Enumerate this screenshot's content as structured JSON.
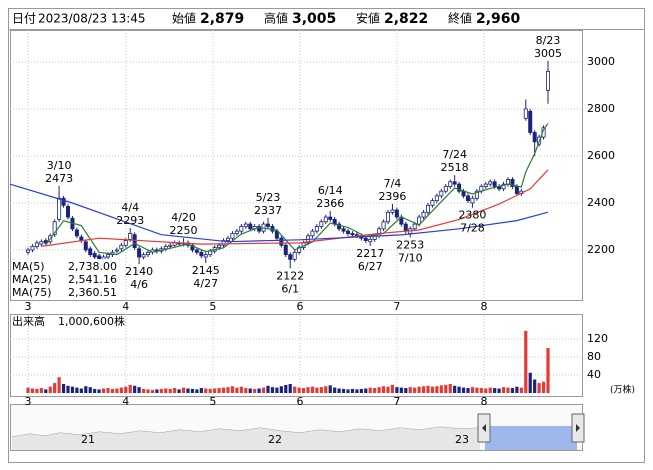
{
  "header": {
    "items": [
      {
        "label": "日付",
        "value": "2023/08/23 13:45"
      },
      {
        "label": "始値",
        "value": "2,879"
      },
      {
        "label": "高値",
        "value": "3,005",
        "color": "#e60000"
      },
      {
        "label": "安値",
        "value": "2,822",
        "color": "#008000"
      },
      {
        "label": "終値",
        "value": "2,960"
      }
    ]
  },
  "chart_data": [
    {
      "type": "candlestick",
      "x": [
        0,
        1,
        2,
        3,
        4,
        5,
        6,
        7,
        8,
        9,
        10,
        11,
        12,
        13,
        14,
        15,
        16,
        17,
        18,
        19,
        20,
        21,
        22,
        23,
        24,
        25,
        26,
        27,
        28,
        29,
        30,
        31,
        32,
        33,
        34,
        35,
        36,
        37,
        38,
        39,
        40,
        41,
        42,
        43,
        44,
        45,
        46,
        47,
        48,
        49,
        50,
        51,
        52,
        53,
        54,
        55,
        56,
        57,
        58,
        59,
        60,
        61,
        62,
        63,
        64,
        65,
        66,
        67,
        68,
        69,
        70,
        71,
        72,
        73,
        74,
        75,
        76,
        77,
        78,
        79,
        80,
        81,
        82,
        83,
        84,
        85,
        86,
        87,
        88,
        89,
        90,
        91,
        92,
        93,
        94,
        95,
        96,
        97,
        98,
        99,
        100,
        101,
        102,
        103,
        104,
        105,
        106,
        107,
        108,
        109,
        110,
        111,
        112,
        113,
        114,
        115,
        116,
        117
      ],
      "open": [
        2190,
        2200,
        2215,
        2225,
        2240,
        2235,
        2265,
        2330,
        2420,
        2385,
        2335,
        2285,
        2255,
        2235,
        2205,
        2185,
        2175,
        2160,
        2170,
        2180,
        2195,
        2205,
        2220,
        2245,
        2265,
        2205,
        2170,
        2180,
        2190,
        2200,
        2195,
        2205,
        2215,
        2220,
        2230,
        2225,
        2230,
        2220,
        2200,
        2190,
        2170,
        2180,
        2195,
        2210,
        2220,
        2240,
        2250,
        2270,
        2280,
        2300,
        2310,
        2290,
        2300,
        2280,
        2310,
        2300,
        2280,
        2250,
        2220,
        2180,
        2160,
        2190,
        2210,
        2230,
        2260,
        2280,
        2300,
        2320,
        2340,
        2330,
        2310,
        2290,
        2280,
        2270,
        2265,
        2260,
        2250,
        2235,
        2245,
        2260,
        2290,
        2320,
        2360,
        2370,
        2340,
        2310,
        2270,
        2290,
        2310,
        2340,
        2360,
        2390,
        2410,
        2430,
        2450,
        2470,
        2490,
        2480,
        2450,
        2430,
        2400,
        2420,
        2450,
        2470,
        2480,
        2490,
        2470,
        2460,
        2480,
        2500,
        2470,
        2440,
        2760,
        2790,
        2700,
        2650,
        2680,
        2879
      ],
      "high": [
        2210,
        2225,
        2240,
        2245,
        2250,
        2270,
        2330,
        2473,
        2430,
        2395,
        2345,
        2295,
        2265,
        2245,
        2215,
        2195,
        2185,
        2180,
        2190,
        2200,
        2210,
        2230,
        2250,
        2293,
        2275,
        2215,
        2190,
        2200,
        2210,
        2210,
        2215,
        2225,
        2230,
        2240,
        2240,
        2250,
        2240,
        2230,
        2210,
        2200,
        2190,
        2205,
        2220,
        2230,
        2250,
        2260,
        2280,
        2290,
        2310,
        2320,
        2320,
        2310,
        2310,
        2320,
        2337,
        2310,
        2290,
        2260,
        2230,
        2190,
        2200,
        2220,
        2240,
        2270,
        2290,
        2310,
        2330,
        2350,
        2366,
        2340,
        2320,
        2300,
        2290,
        2280,
        2275,
        2270,
        2260,
        2255,
        2270,
        2300,
        2330,
        2370,
        2396,
        2380,
        2350,
        2320,
        2300,
        2320,
        2350,
        2370,
        2400,
        2420,
        2440,
        2460,
        2480,
        2500,
        2518,
        2490,
        2460,
        2440,
        2430,
        2460,
        2480,
        2490,
        2500,
        2500,
        2480,
        2490,
        2510,
        2510,
        2480,
        2460,
        2840,
        2800,
        2710,
        2690,
        2730,
        3005
      ],
      "low": [
        2180,
        2190,
        2205,
        2215,
        2220,
        2225,
        2255,
        2320,
        2380,
        2330,
        2280,
        2250,
        2230,
        2190,
        2170,
        2160,
        2150,
        2150,
        2160,
        2170,
        2185,
        2195,
        2210,
        2235,
        2200,
        2140,
        2160,
        2170,
        2180,
        2185,
        2185,
        2195,
        2205,
        2210,
        2215,
        2215,
        2210,
        2190,
        2180,
        2165,
        2145,
        2170,
        2185,
        2200,
        2210,
        2230,
        2240,
        2260,
        2270,
        2290,
        2280,
        2280,
        2270,
        2270,
        2290,
        2270,
        2240,
        2210,
        2170,
        2122,
        2150,
        2180,
        2200,
        2220,
        2250,
        2270,
        2290,
        2310,
        2320,
        2300,
        2280,
        2270,
        2260,
        2255,
        2250,
        2240,
        2230,
        2217,
        2235,
        2250,
        2280,
        2310,
        2350,
        2330,
        2300,
        2270,
        2253,
        2280,
        2300,
        2330,
        2350,
        2380,
        2400,
        2420,
        2440,
        2460,
        2470,
        2440,
        2420,
        2400,
        2380,
        2410,
        2440,
        2460,
        2470,
        2460,
        2450,
        2450,
        2470,
        2460,
        2430,
        2430,
        2750,
        2690,
        2600,
        2640,
        2670,
        2822
      ],
      "close": [
        2200,
        2215,
        2230,
        2235,
        2230,
        2260,
        2320,
        2420,
        2390,
        2340,
        2290,
        2260,
        2240,
        2200,
        2180,
        2170,
        2160,
        2170,
        2180,
        2190,
        2200,
        2220,
        2240,
        2270,
        2210,
        2170,
        2180,
        2190,
        2200,
        2195,
        2205,
        2215,
        2220,
        2230,
        2225,
        2230,
        2220,
        2200,
        2190,
        2175,
        2180,
        2195,
        2210,
        2220,
        2240,
        2250,
        2270,
        2280,
        2300,
        2310,
        2290,
        2300,
        2280,
        2310,
        2300,
        2280,
        2250,
        2220,
        2180,
        2160,
        2190,
        2210,
        2230,
        2260,
        2280,
        2300,
        2320,
        2340,
        2330,
        2310,
        2290,
        2280,
        2270,
        2265,
        2260,
        2250,
        2240,
        2245,
        2260,
        2290,
        2320,
        2360,
        2370,
        2340,
        2310,
        2280,
        2290,
        2310,
        2340,
        2360,
        2390,
        2410,
        2430,
        2450,
        2470,
        2490,
        2480,
        2450,
        2430,
        2410,
        2420,
        2450,
        2470,
        2480,
        2490,
        2470,
        2460,
        2480,
        2500,
        2470,
        2440,
        2450,
        2800,
        2700,
        2660,
        2680,
        2720,
        2960
      ],
      "up_color": "#ffffff",
      "down_color": "#1a237e",
      "edge_color": "#1a237e",
      "xlim": [
        -4.05,
        124.65
      ],
      "xticks": [
        {
          "value": 0,
          "label": "3"
        },
        {
          "value": 22,
          "label": "4"
        },
        {
          "value": 41.6,
          "label": "5"
        },
        {
          "value": 61.2,
          "label": "6"
        },
        {
          "value": 83,
          "label": "7"
        },
        {
          "value": 102.6,
          "label": "8"
        }
      ],
      "ylim": [
        1987,
        3136
      ],
      "yticks": [
        2200,
        2400,
        2600,
        2800,
        3000
      ],
      "grid": true,
      "lines": [
        {
          "name": "MA(5)",
          "color": "#2e7d32",
          "last_label": "2,738.00",
          "x": [
            4,
            8,
            12,
            16,
            20,
            24,
            28,
            32,
            36,
            40,
            44,
            48,
            52,
            56,
            60,
            64,
            68,
            72,
            76,
            80,
            84,
            88,
            92,
            96,
            100,
            104,
            108,
            111,
            112,
            114,
            116,
            117
          ],
          "values": [
            2222,
            2324,
            2304,
            2190,
            2180,
            2228,
            2190,
            2207,
            2225,
            2193,
            2209,
            2268,
            2296,
            2284,
            2200,
            2234,
            2314,
            2296,
            2257,
            2271,
            2340,
            2306,
            2386,
            2464,
            2438,
            2462,
            2480,
            2468,
            2532,
            2610,
            2712,
            2738.0
          ]
        },
        {
          "name": "MA(25)",
          "color": "#e53935",
          "last_label": "2,541.16",
          "x": [
            3,
            16,
            39,
            61,
            79,
            88,
            97,
            106,
            113,
            117
          ],
          "values": [
            2215,
            2250,
            2225,
            2230,
            2270,
            2285,
            2330,
            2395,
            2460,
            2541.16
          ]
        },
        {
          "name": "MA(75)",
          "color": "#2a3fd6",
          "last_label": "2,360.51",
          "x": [
            -4,
            10,
            30,
            45,
            61,
            84,
            97,
            110,
            117
          ],
          "values": [
            2480,
            2400,
            2265,
            2235,
            2243,
            2264,
            2290,
            2325,
            2360.51
          ]
        }
      ],
      "annotations": [
        {
          "x": 7,
          "date": "3/10",
          "value": 2473,
          "position": "above"
        },
        {
          "x": 23,
          "date": "4/4",
          "value": 2293,
          "position": "above"
        },
        {
          "x": 25,
          "date": "4/6",
          "value": 2140,
          "position": "below"
        },
        {
          "x": 35,
          "date": "4/20",
          "value": 2250,
          "position": "above"
        },
        {
          "x": 40,
          "date": "4/27",
          "value": 2145,
          "position": "below"
        },
        {
          "x": 54,
          "date": "5/23",
          "value": 2337,
          "position": "above"
        },
        {
          "x": 59,
          "date": "6/1",
          "value": 2122,
          "position": "below"
        },
        {
          "x": 68,
          "date": "6/14",
          "value": 2366,
          "position": "above"
        },
        {
          "x": 77,
          "date": "6/27",
          "value": 2217,
          "position": "below"
        },
        {
          "x": 82,
          "date": "7/4",
          "value": 2396,
          "position": "above"
        },
        {
          "x": 86,
          "date": "7/10",
          "value": 2253,
          "position": "below"
        },
        {
          "x": 96,
          "date": "7/24",
          "value": 2518,
          "position": "above"
        },
        {
          "x": 100,
          "date": "7/28",
          "value": 2380,
          "position": "below"
        },
        {
          "x": 117,
          "date": "8/23",
          "value": 3005,
          "position": "above"
        }
      ]
    },
    {
      "type": "bar",
      "title": "出来高",
      "subtitle": "1,000,600株",
      "unit_label": "(万株)",
      "x": [
        0,
        1,
        2,
        3,
        4,
        5,
        6,
        7,
        8,
        9,
        10,
        11,
        12,
        13,
        14,
        15,
        16,
        17,
        18,
        19,
        20,
        21,
        22,
        23,
        24,
        25,
        26,
        27,
        28,
        29,
        30,
        31,
        32,
        33,
        34,
        35,
        36,
        37,
        38,
        39,
        40,
        41,
        42,
        43,
        44,
        45,
        46,
        47,
        48,
        49,
        50,
        51,
        52,
        53,
        54,
        55,
        56,
        57,
        58,
        59,
        60,
        61,
        62,
        63,
        64,
        65,
        66,
        67,
        68,
        69,
        70,
        71,
        72,
        73,
        74,
        75,
        76,
        77,
        78,
        79,
        80,
        81,
        82,
        83,
        84,
        85,
        86,
        87,
        88,
        89,
        90,
        91,
        92,
        93,
        94,
        95,
        96,
        97,
        98,
        99,
        100,
        101,
        102,
        103,
        104,
        105,
        106,
        107,
        108,
        109,
        110,
        111,
        112,
        113,
        114,
        115,
        116,
        117
      ],
      "values": [
        12,
        10,
        9,
        11,
        8,
        14,
        22,
        35,
        20,
        16,
        14,
        12,
        10,
        15,
        13,
        9,
        8,
        10,
        11,
        9,
        10,
        12,
        14,
        18,
        16,
        13,
        9,
        8,
        7,
        8,
        9,
        10,
        9,
        11,
        8,
        12,
        10,
        9,
        8,
        11,
        10,
        9,
        10,
        11,
        12,
        13,
        15,
        12,
        14,
        11,
        10,
        9,
        10,
        12,
        16,
        13,
        12,
        15,
        18,
        20,
        14,
        12,
        11,
        13,
        14,
        12,
        13,
        15,
        17,
        12,
        10,
        9,
        8,
        9,
        8,
        9,
        10,
        12,
        11,
        13,
        15,
        14,
        18,
        13,
        12,
        11,
        13,
        12,
        14,
        15,
        16,
        14,
        15,
        17,
        18,
        20,
        16,
        14,
        12,
        11,
        13,
        12,
        11,
        10,
        12,
        11,
        10,
        13,
        12,
        11,
        14,
        12,
        138,
        45,
        30,
        22,
        25,
        100.06
      ],
      "up_color": "#e53935",
      "down_color": "#1a237e",
      "xlim": [
        -4.05,
        124.65
      ],
      "xticks": [
        {
          "value": 0,
          "label": "3"
        },
        {
          "value": 22,
          "label": "4"
        },
        {
          "value": 41.6,
          "label": "5"
        },
        {
          "value": 61.2,
          "label": "6"
        },
        {
          "value": 83,
          "label": "7"
        },
        {
          "value": 102.6,
          "label": "8"
        }
      ],
      "ylim": [
        0,
        171
      ],
      "yticks": [
        40,
        80,
        120
      ],
      "grid": true
    }
  ],
  "navigator": {
    "labels": [
      "21",
      "22",
      "23"
    ]
  }
}
